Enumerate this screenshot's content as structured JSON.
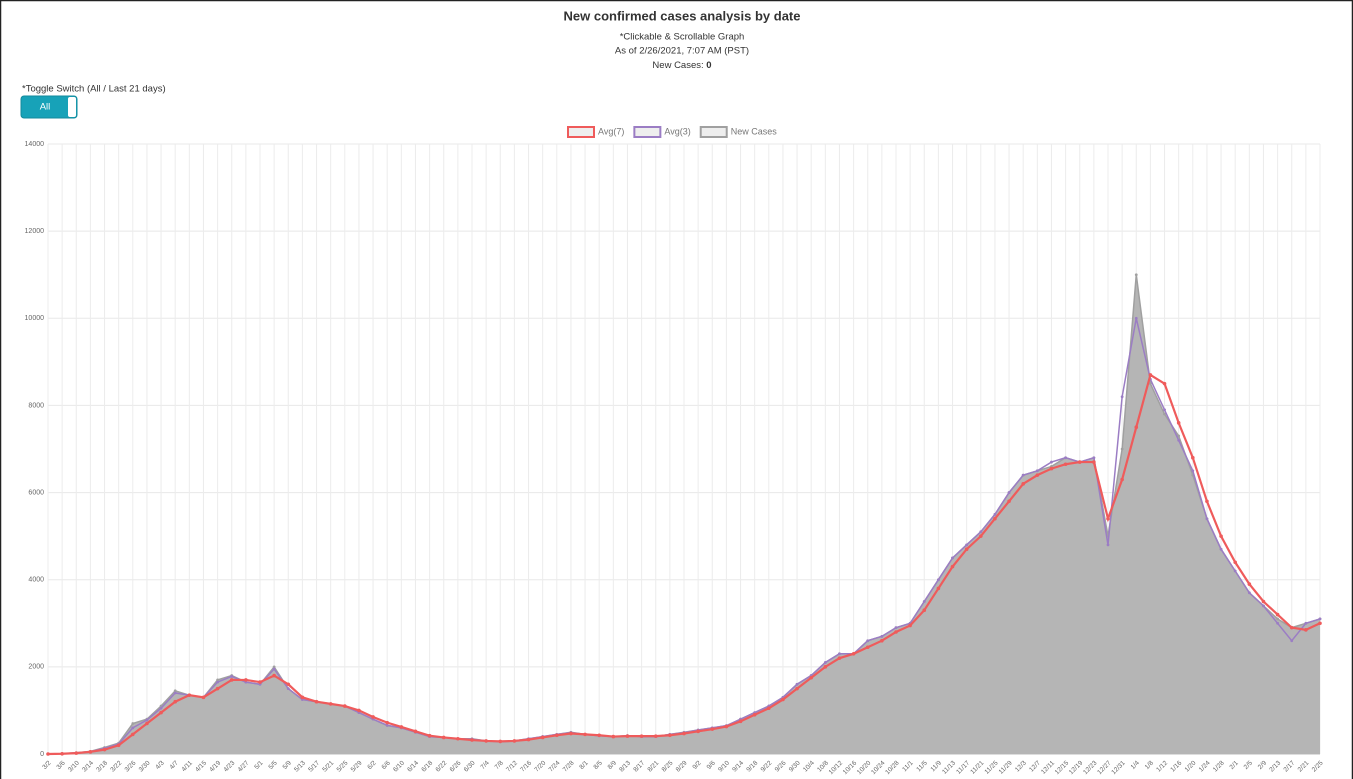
{
  "chart_data": {
    "type": "line",
    "title": "New confirmed cases analysis by date",
    "subtitles": [
      "*Clickable & Scrollable Graph",
      "As of 2/26/2021, 7:07 AM (PST)"
    ],
    "new_cases_label": "New Cases:",
    "new_cases_value": 0,
    "toggle": {
      "label": "*Toggle Switch (All / Last 21 days)",
      "button": "All"
    },
    "categories": [
      "3/2",
      "3/6",
      "3/10",
      "3/14",
      "3/18",
      "3/22",
      "3/26",
      "3/30",
      "4/3",
      "4/7",
      "4/11",
      "4/15",
      "4/19",
      "4/23",
      "4/27",
      "5/1",
      "5/5",
      "5/9",
      "5/13",
      "5/17",
      "5/21",
      "5/25",
      "5/29",
      "6/2",
      "6/6",
      "6/10",
      "6/14",
      "6/18",
      "6/22",
      "6/26",
      "6/30",
      "7/4",
      "7/8",
      "7/12",
      "7/16",
      "7/20",
      "7/24",
      "7/28",
      "8/1",
      "8/5",
      "8/9",
      "8/13",
      "8/17",
      "8/21",
      "8/25",
      "8/29",
      "9/2",
      "9/6",
      "9/10",
      "9/14",
      "9/18",
      "9/22",
      "9/26",
      "9/30",
      "10/4",
      "10/8",
      "10/12",
      "10/16",
      "10/20",
      "10/24",
      "10/28",
      "11/1",
      "11/5",
      "11/9",
      "11/13",
      "11/17",
      "11/21",
      "11/25",
      "11/29",
      "12/3",
      "12/7",
      "12/11",
      "12/15",
      "12/19",
      "12/23",
      "12/27",
      "12/31",
      "1/4",
      "1/8",
      "1/12",
      "1/16",
      "1/20",
      "1/24",
      "1/28",
      "2/1",
      "2/5",
      "2/9",
      "2/13",
      "2/17",
      "2/21",
      "2/25"
    ],
    "series": [
      {
        "name": "Avg(7)",
        "color": "#ef5b5b",
        "values": [
          0,
          5,
          20,
          50,
          100,
          200,
          450,
          700,
          950,
          1200,
          1350,
          1300,
          1500,
          1700,
          1700,
          1650,
          1800,
          1600,
          1300,
          1200,
          1150,
          1100,
          1000,
          850,
          720,
          620,
          520,
          420,
          380,
          350,
          320,
          300,
          290,
          300,
          330,
          380,
          430,
          470,
          450,
          430,
          400,
          410,
          410,
          410,
          430,
          470,
          520,
          570,
          630,
          750,
          900,
          1050,
          1250,
          1500,
          1750,
          2000,
          2200,
          2300,
          2450,
          2600,
          2800,
          2950,
          3300,
          3800,
          4300,
          4700,
          5000,
          5400,
          5800,
          6200,
          6400,
          6550,
          6650,
          6700,
          6700,
          5400,
          6300,
          7500,
          8700,
          8500,
          7600,
          6800,
          5800,
          5000,
          4400,
          3900,
          3500,
          3200,
          2900,
          2850,
          3000
        ]
      },
      {
        "name": "Avg(3)",
        "color": "#9b7dc4",
        "values": [
          0,
          8,
          25,
          55,
          130,
          230,
          600,
          780,
          1050,
          1400,
          1350,
          1300,
          1650,
          1780,
          1650,
          1600,
          1950,
          1500,
          1250,
          1200,
          1150,
          1100,
          950,
          800,
          660,
          600,
          500,
          400,
          380,
          350,
          340,
          300,
          280,
          300,
          350,
          400,
          450,
          490,
          450,
          420,
          400,
          420,
          400,
          400,
          450,
          490,
          550,
          600,
          650,
          800,
          950,
          1100,
          1300,
          1600,
          1800,
          2100,
          2300,
          2300,
          2600,
          2700,
          2900,
          3000,
          3500,
          4000,
          4500,
          4800,
          5100,
          5500,
          6000,
          6400,
          6500,
          6700,
          6800,
          6700,
          6800,
          4800,
          8200,
          10000,
          8600,
          7900,
          7200,
          6500,
          5400,
          4700,
          4200,
          3700,
          3400,
          3000,
          2600,
          3000,
          3100
        ]
      },
      {
        "name": "New Cases",
        "color": "#a0a0a0",
        "values": [
          0,
          10,
          30,
          60,
          150,
          250,
          700,
          800,
          1100,
          1450,
          1350,
          1300,
          1700,
          1800,
          1650,
          1600,
          2000,
          1500,
          1250,
          1200,
          1150,
          1100,
          950,
          800,
          650,
          600,
          500,
          400,
          380,
          350,
          350,
          300,
          280,
          300,
          350,
          400,
          450,
          500,
          450,
          420,
          400,
          420,
          400,
          400,
          450,
          500,
          550,
          600,
          650,
          800,
          950,
          1100,
          1300,
          1600,
          1800,
          2100,
          2300,
          2300,
          2600,
          2700,
          2900,
          3000,
          3500,
          4000,
          4500,
          4800,
          5100,
          5500,
          6000,
          6400,
          6500,
          6600,
          6800,
          6700,
          6800,
          5000,
          7000,
          11000,
          8500,
          7800,
          7300,
          6400,
          5400,
          4700,
          4200,
          3700,
          3400,
          3100,
          2900,
          3000,
          3100
        ]
      }
    ],
    "ylim": [
      0,
      14000
    ],
    "yticks": [
      0,
      2000,
      4000,
      6000,
      8000,
      10000,
      12000,
      14000
    ],
    "grid": true
  }
}
